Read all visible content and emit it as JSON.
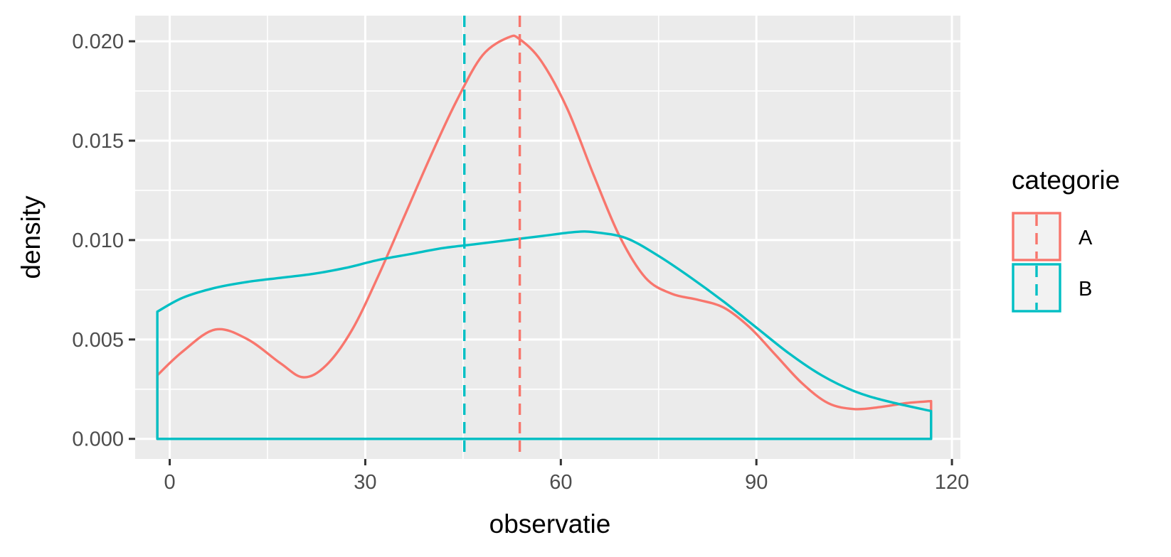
{
  "chart_data": {
    "type": "line",
    "title": "",
    "xlabel": "observatie",
    "ylabel": "density",
    "xlim": [
      -5.3,
      121.3
    ],
    "ylim": [
      -0.00101,
      0.02129
    ],
    "x_ticks": [
      0,
      30,
      60,
      90,
      120
    ],
    "x_tick_labels": [
      "0",
      "30",
      "60",
      "90",
      "120"
    ],
    "y_ticks": [
      0,
      0.005,
      0.01,
      0.015,
      0.02
    ],
    "y_tick_labels": [
      "0.000",
      "0.005",
      "0.010",
      "0.015",
      "0.020"
    ],
    "grid": true,
    "legend": {
      "title": "categorie",
      "position": "right"
    },
    "series": [
      {
        "name": "A",
        "color": "#F8766D",
        "mean": 53.7,
        "x": [
          -1.9,
          2,
          7,
          12,
          17,
          20.5,
          24,
          28,
          32,
          36,
          40,
          44,
          48,
          52,
          53.7,
          57,
          61,
          65,
          69,
          73,
          77,
          81,
          85,
          89,
          93,
          97,
          101,
          105,
          109,
          113,
          116.8
        ],
        "density": [
          0.0032,
          0.0044,
          0.0055,
          0.005,
          0.0038,
          0.0031,
          0.0037,
          0.0055,
          0.0082,
          0.0112,
          0.0142,
          0.017,
          0.0193,
          0.0202,
          0.0201,
          0.019,
          0.0166,
          0.0133,
          0.0102,
          0.0081,
          0.0073,
          0.007,
          0.0066,
          0.0056,
          0.0042,
          0.0028,
          0.0018,
          0.0015,
          0.0016,
          0.0018,
          0.0019
        ]
      },
      {
        "name": "B",
        "color": "#00BFC4",
        "mean": 45.2,
        "x": [
          -1.9,
          2,
          7,
          12,
          17,
          22,
          27,
          32,
          37,
          42,
          47,
          52,
          57,
          62,
          65,
          70,
          75,
          80,
          85,
          90,
          95,
          100,
          105,
          110,
          116.8
        ],
        "density": [
          0.0064,
          0.0071,
          0.0076,
          0.0079,
          0.0081,
          0.0083,
          0.0086,
          0.009,
          0.0093,
          0.0096,
          0.0098,
          0.01,
          0.0102,
          0.0104,
          0.0104,
          0.0101,
          0.0092,
          0.0081,
          0.0069,
          0.0056,
          0.0043,
          0.0032,
          0.0024,
          0.0019,
          0.0014
        ]
      }
    ]
  }
}
